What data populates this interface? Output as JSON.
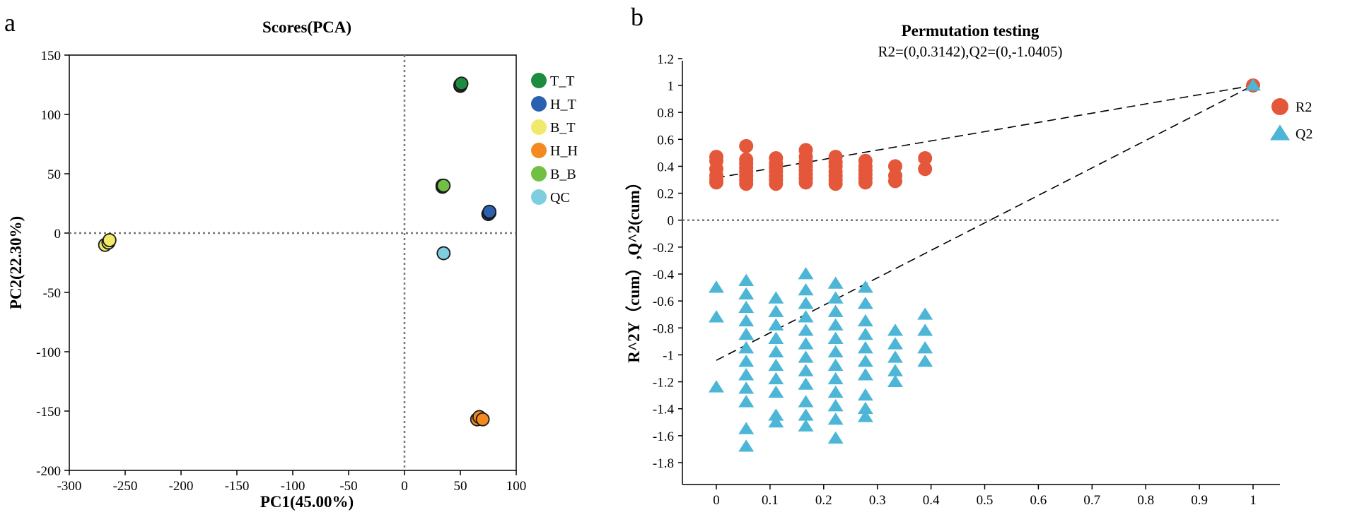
{
  "chart_data": [
    {
      "panel": "a",
      "type": "scatter",
      "title": "Scores(PCA)",
      "xlabel": "PC1(45.00%)",
      "ylabel": "PC2(22.30%)",
      "xlim": [
        -300,
        100
      ],
      "ylim": [
        -200,
        150
      ],
      "xticks": [
        -300,
        -250,
        -200,
        -150,
        -100,
        -50,
        0,
        50,
        100
      ],
      "yticks": [
        -200,
        -150,
        -100,
        -50,
        0,
        50,
        100,
        150
      ],
      "reference_lines": {
        "x": 0,
        "y": 0
      },
      "legend_position": "right",
      "series": [
        {
          "name": "T_T",
          "color": "#1e8c3e",
          "points": [
            [
              50,
              124
            ],
            [
              50,
              125
            ],
            [
              51,
              126
            ]
          ]
        },
        {
          "name": "H_T",
          "color": "#2b60b0",
          "points": [
            [
              75,
              16
            ],
            [
              76,
              17
            ],
            [
              76,
              18
            ]
          ]
        },
        {
          "name": "B_T",
          "color": "#f0e96a",
          "points": [
            [
              -268,
              -10
            ],
            [
              -265,
              -8
            ],
            [
              -264,
              -6
            ]
          ]
        },
        {
          "name": "H_H",
          "color": "#f28a1f",
          "points": [
            [
              65,
              -157
            ],
            [
              67,
              -155
            ],
            [
              70,
              -157
            ]
          ]
        },
        {
          "name": "B_B",
          "color": "#72c043",
          "points": [
            [
              34,
              39
            ],
            [
              34,
              40
            ],
            [
              35,
              40
            ]
          ]
        },
        {
          "name": "QC",
          "color": "#7dcfe0",
          "points": [
            [
              35,
              -17
            ]
          ]
        }
      ]
    },
    {
      "panel": "b",
      "type": "scatter",
      "title": "Permutation testing",
      "subtitle": "R2=(0,0.3142),Q2=(0,-1.0405)",
      "xlabel": "",
      "ylabel": "R^2Y（cum）,Q^2(cum）",
      "xlim": [
        -0.08,
        1.08
      ],
      "ylim": [
        -1.9,
        1.2
      ],
      "xticks": [
        "0",
        "0.1",
        "0.2",
        "0.3",
        "0.4",
        "0.5",
        "0.6",
        "0.7",
        "0.8",
        "0.9",
        "1"
      ],
      "yticks": [
        "1.2",
        "1",
        "0.8",
        "0.6",
        "0.4",
        "0.2",
        "0",
        "-0.2",
        "-0.4",
        "-0.6",
        "-0.8",
        "-1",
        "-1.2",
        "-1.4",
        "-1.6",
        "-1.8"
      ],
      "reference_lines": {
        "y": 0
      },
      "legend_position": "right",
      "regression": {
        "R2": {
          "intercept": 0.3142,
          "end": [
            1,
            1
          ]
        },
        "Q2": {
          "intercept": -1.0405,
          "end": [
            1,
            1
          ]
        }
      },
      "series": [
        {
          "name": "R2",
          "marker": "circle",
          "color": "#e4573a",
          "groups": [
            {
              "x": 0,
              "y": [
                0.28,
                0.3,
                0.33,
                0.38,
                0.44,
                0.47
              ]
            },
            {
              "x": 0.0556,
              "y": [
                0.27,
                0.3,
                0.33,
                0.36,
                0.39,
                0.42,
                0.45,
                0.55
              ]
            },
            {
              "x": 0.1111,
              "y": [
                0.27,
                0.3,
                0.33,
                0.36,
                0.39,
                0.42,
                0.46
              ]
            },
            {
              "x": 0.1667,
              "y": [
                0.28,
                0.31,
                0.34,
                0.37,
                0.4,
                0.43,
                0.47,
                0.52
              ]
            },
            {
              "x": 0.2222,
              "y": [
                0.27,
                0.3,
                0.33,
                0.36,
                0.4,
                0.43,
                0.47
              ]
            },
            {
              "x": 0.2778,
              "y": [
                0.28,
                0.31,
                0.34,
                0.37,
                0.4,
                0.44
              ]
            },
            {
              "x": 0.3333,
              "y": [
                0.29,
                0.33,
                0.4
              ]
            },
            {
              "x": 0.3889,
              "y": [
                0.38,
                0.46
              ]
            },
            {
              "x": 1,
              "y": [
                1
              ]
            }
          ]
        },
        {
          "name": "Q2",
          "marker": "triangle",
          "color": "#4db6d6",
          "groups": [
            {
              "x": 0,
              "y": [
                -0.5,
                -0.72,
                -1.24
              ]
            },
            {
              "x": 0.0556,
              "y": [
                -0.45,
                -0.55,
                -0.65,
                -0.75,
                -0.85,
                -0.95,
                -1.05,
                -1.15,
                -1.25,
                -1.35,
                -1.55,
                -1.68
              ]
            },
            {
              "x": 0.1111,
              "y": [
                -0.58,
                -0.68,
                -0.78,
                -0.88,
                -0.98,
                -1.08,
                -1.18,
                -1.28,
                -1.45,
                -1.5
              ]
            },
            {
              "x": 0.1667,
              "y": [
                -0.4,
                -0.52,
                -0.62,
                -0.72,
                -0.82,
                -0.92,
                -1.02,
                -1.12,
                -1.22,
                -1.35,
                -1.45,
                -1.53
              ]
            },
            {
              "x": 0.2222,
              "y": [
                -0.47,
                -0.58,
                -0.68,
                -0.78,
                -0.88,
                -0.98,
                -1.08,
                -1.18,
                -1.28,
                -1.38,
                -1.48,
                -1.62
              ]
            },
            {
              "x": 0.2778,
              "y": [
                -0.5,
                -0.62,
                -0.75,
                -0.85,
                -0.95,
                -1.05,
                -1.15,
                -1.3,
                -1.4,
                -1.46
              ]
            },
            {
              "x": 0.3333,
              "y": [
                -0.82,
                -0.92,
                -1.02,
                -1.12,
                -1.2
              ]
            },
            {
              "x": 0.3889,
              "y": [
                -0.7,
                -0.82,
                -0.95,
                -1.05
              ]
            },
            {
              "x": 1,
              "y": [
                1
              ]
            }
          ]
        }
      ]
    }
  ]
}
